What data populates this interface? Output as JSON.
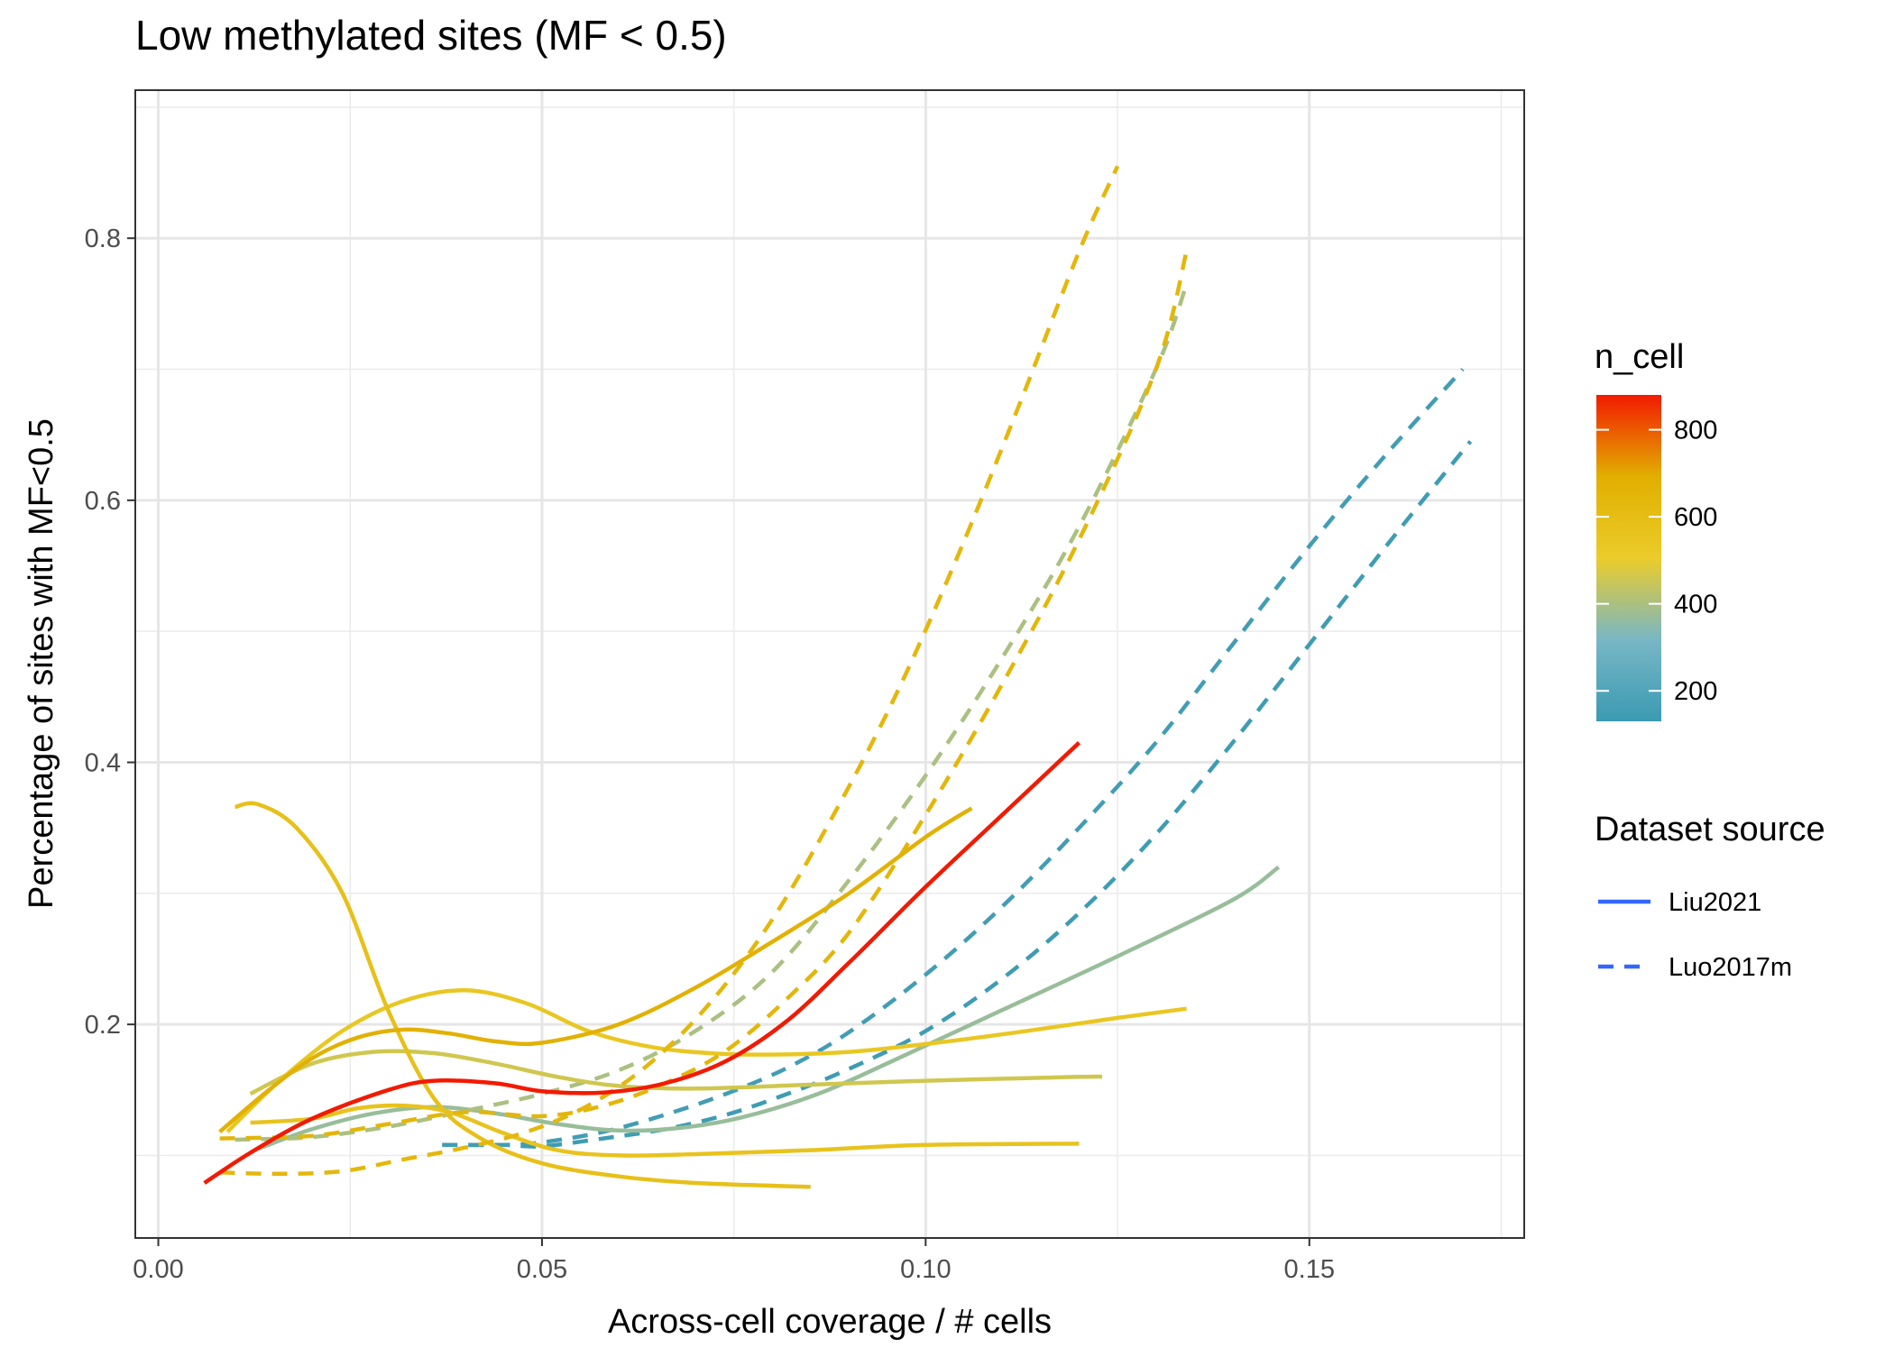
{
  "chart_data": {
    "type": "line",
    "title": "Low methylated sites (MF < 0.5)",
    "xlabel": "Across-cell coverage / # cells",
    "ylabel": "Percentage of sites with MF<0.5",
    "xlim": [
      -0.003,
      0.178
    ],
    "ylim": [
      0.037,
      0.913
    ],
    "x_ticks": [
      0.0,
      0.05,
      0.1,
      0.15
    ],
    "x_tick_labels": [
      "0.00",
      "0.05",
      "0.10",
      "0.15"
    ],
    "y_ticks": [
      0.2,
      0.4,
      0.6,
      0.8
    ],
    "y_tick_labels": [
      "0.2",
      "0.4",
      "0.6",
      "0.8"
    ],
    "grid": true,
    "color_legend": {
      "title": "n_cell",
      "min": 130,
      "max": 880,
      "ticks": [
        200,
        400,
        600,
        800
      ],
      "tick_labels": [
        "200",
        "400",
        "600",
        "800"
      ],
      "colors": [
        "#3B9AB2",
        "#78B7C5",
        "#EBCC2A",
        "#E1AF00",
        "#F21A00"
      ]
    },
    "linetype_legend": {
      "title": "Dataset source",
      "entries": [
        {
          "label": "Liu2021",
          "dash": "solid"
        },
        {
          "label": "Luo2017m",
          "dash": "dashed"
        }
      ],
      "color": "#3366FF"
    },
    "series": [
      {
        "source": "Liu2021",
        "n_cell": 880,
        "x": [
          0.006,
          0.012,
          0.02,
          0.03,
          0.036,
          0.044,
          0.05,
          0.058,
          0.066,
          0.074,
          0.082,
          0.09,
          0.1,
          0.11,
          0.12
        ],
        "y": [
          0.079,
          0.102,
          0.128,
          0.15,
          0.157,
          0.155,
          0.149,
          0.148,
          0.155,
          0.172,
          0.203,
          0.247,
          0.305,
          0.36,
          0.415
        ]
      },
      {
        "source": "Liu2021",
        "n_cell": 680,
        "x": [
          0.008,
          0.014,
          0.02,
          0.026,
          0.032,
          0.038,
          0.044,
          0.05,
          0.06,
          0.07,
          0.08,
          0.09,
          0.1,
          0.106
        ],
        "y": [
          0.118,
          0.148,
          0.174,
          0.19,
          0.196,
          0.193,
          0.187,
          0.186,
          0.2,
          0.228,
          0.263,
          0.3,
          0.343,
          0.365
        ]
      },
      {
        "source": "Liu2021",
        "n_cell": 540,
        "x": [
          0.009,
          0.016,
          0.024,
          0.032,
          0.04,
          0.048,
          0.056,
          0.064,
          0.072,
          0.08,
          0.09,
          0.1,
          0.112,
          0.125,
          0.134
        ],
        "y": [
          0.118,
          0.158,
          0.195,
          0.218,
          0.226,
          0.216,
          0.195,
          0.183,
          0.178,
          0.177,
          0.179,
          0.185,
          0.194,
          0.205,
          0.212
        ]
      },
      {
        "source": "Liu2021",
        "n_cell": 460,
        "x": [
          0.012,
          0.02,
          0.028,
          0.036,
          0.044,
          0.052,
          0.06,
          0.07,
          0.085,
          0.1,
          0.12,
          0.123
        ],
        "y": [
          0.147,
          0.17,
          0.179,
          0.178,
          0.17,
          0.16,
          0.153,
          0.151,
          0.154,
          0.157,
          0.16,
          0.16
        ]
      },
      {
        "source": "Liu2021",
        "n_cell": 370,
        "x": [
          0.013,
          0.02,
          0.028,
          0.036,
          0.044,
          0.052,
          0.06,
          0.068,
          0.076,
          0.086,
          0.096,
          0.11,
          0.125,
          0.14,
          0.146
        ],
        "y": [
          0.105,
          0.12,
          0.132,
          0.137,
          0.132,
          0.124,
          0.119,
          0.121,
          0.129,
          0.147,
          0.173,
          0.211,
          0.252,
          0.295,
          0.32
        ]
      },
      {
        "source": "Liu2021",
        "n_cell": 580,
        "x": [
          0.01,
          0.013,
          0.018,
          0.024,
          0.03,
          0.036,
          0.042,
          0.05,
          0.06,
          0.07,
          0.085
        ],
        "y": [
          0.366,
          0.368,
          0.35,
          0.3,
          0.21,
          0.143,
          0.113,
          0.094,
          0.084,
          0.079,
          0.076
        ]
      },
      {
        "source": "Liu2021",
        "n_cell": 560,
        "x": [
          0.012,
          0.02,
          0.026,
          0.032,
          0.038,
          0.045,
          0.052,
          0.06,
          0.07,
          0.085,
          0.1,
          0.12
        ],
        "y": [
          0.125,
          0.128,
          0.136,
          0.138,
          0.133,
          0.117,
          0.104,
          0.1,
          0.101,
          0.104,
          0.108,
          0.109
        ]
      },
      {
        "source": "Luo2017m",
        "n_cell": 640,
        "x": [
          0.008,
          0.016,
          0.024,
          0.032,
          0.04,
          0.048,
          0.056,
          0.064,
          0.072,
          0.08,
          0.088,
          0.096,
          0.104,
          0.112,
          0.12,
          0.125
        ],
        "y": [
          0.087,
          0.086,
          0.088,
          0.097,
          0.106,
          0.118,
          0.138,
          0.17,
          0.217,
          0.28,
          0.36,
          0.45,
          0.555,
          0.67,
          0.79,
          0.855
        ]
      },
      {
        "source": "Luo2017m",
        "n_cell": 400,
        "x": [
          0.01,
          0.02,
          0.03,
          0.04,
          0.05,
          0.06,
          0.07,
          0.08,
          0.09,
          0.1,
          0.11,
          0.12,
          0.13,
          0.134
        ],
        "y": [
          0.112,
          0.114,
          0.122,
          0.134,
          0.147,
          0.165,
          0.195,
          0.24,
          0.31,
          0.39,
          0.48,
          0.58,
          0.7,
          0.765
        ]
      },
      {
        "source": "Luo2017m",
        "n_cell": 650,
        "x": [
          0.008,
          0.02,
          0.03,
          0.04,
          0.05,
          0.058,
          0.066,
          0.074,
          0.082,
          0.09,
          0.1,
          0.11,
          0.12,
          0.13,
          0.134
        ],
        "y": [
          0.113,
          0.115,
          0.124,
          0.133,
          0.13,
          0.138,
          0.155,
          0.18,
          0.22,
          0.27,
          0.36,
          0.46,
          0.57,
          0.7,
          0.79
        ]
      },
      {
        "source": "Luo2017m",
        "n_cell": 150,
        "x": [
          0.037,
          0.045,
          0.05,
          0.058,
          0.066,
          0.074,
          0.082,
          0.09,
          0.1,
          0.11,
          0.12,
          0.13,
          0.14,
          0.15,
          0.16,
          0.17
        ],
        "y": [
          0.108,
          0.108,
          0.11,
          0.118,
          0.131,
          0.147,
          0.167,
          0.194,
          0.238,
          0.29,
          0.35,
          0.415,
          0.49,
          0.565,
          0.635,
          0.7
        ]
      },
      {
        "source": "Luo2017m",
        "n_cell": 140,
        "x": [
          0.037,
          0.045,
          0.05,
          0.058,
          0.066,
          0.074,
          0.082,
          0.09,
          0.1,
          0.11,
          0.12,
          0.13,
          0.14,
          0.15,
          0.16,
          0.171
        ],
        "y": [
          0.108,
          0.108,
          0.107,
          0.113,
          0.12,
          0.131,
          0.147,
          0.166,
          0.195,
          0.235,
          0.285,
          0.345,
          0.415,
          0.49,
          0.565,
          0.645
        ]
      }
    ]
  }
}
